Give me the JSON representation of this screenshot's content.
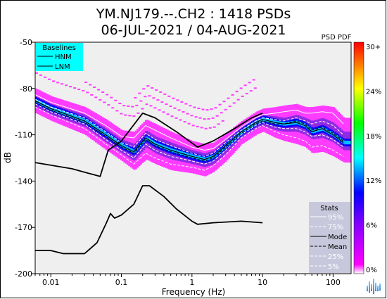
{
  "chart_data": {
    "type": "heatmap",
    "title": "YM.NJ179.--.CH2 : 1418 PSDs",
    "subtitle": "06-JUL-2021 / 04-AUG-2021",
    "xlabel": "Frequency (Hz)",
    "ylabel": "dB",
    "x_scale": "log",
    "xlim": [
      0.006,
      180
    ],
    "ylim": [
      -200,
      -50
    ],
    "x_ticks": [
      {
        "value": 0.01,
        "label": "0.01"
      },
      {
        "value": 0.1,
        "label": "0.1"
      },
      {
        "value": 1,
        "label": "1"
      },
      {
        "value": 10,
        "label": "10"
      },
      {
        "value": 100,
        "label": "100"
      }
    ],
    "y_ticks": [
      {
        "value": -50,
        "label": "-50"
      },
      {
        "value": -80,
        "label": "-80"
      },
      {
        "value": -110,
        "label": "-110"
      },
      {
        "value": -140,
        "label": "-140"
      },
      {
        "value": -170,
        "label": "-170"
      },
      {
        "value": -200,
        "label": "-200"
      }
    ],
    "colorbar": {
      "title": "PSD PDF",
      "labels": [
        "30+",
        "24%",
        "18%",
        "12%",
        "6%",
        "0%"
      ],
      "colors": [
        "#ff0000",
        "#ffff00",
        "#00ff00",
        "#00ffff",
        "#0000ff",
        "#ff00ff",
        "#ffffff"
      ]
    },
    "baselines_legend": {
      "title": "Baselines",
      "entries": [
        "HNM",
        "LNM"
      ],
      "background": "#00ffff"
    },
    "stats_legend": {
      "title": "Stats",
      "entries": [
        "95%",
        "75%",
        "Mode",
        "Mean",
        "25%",
        "5%"
      ],
      "background": "#c8c8dc"
    },
    "series": [
      {
        "name": "HNM",
        "x": [
          0.006,
          0.02,
          0.05,
          0.065,
          0.1,
          0.2,
          0.3,
          0.6,
          1.2,
          2,
          4,
          7,
          10
        ],
        "y": [
          -128,
          -132,
          -137,
          -120,
          -114,
          -96,
          -99,
          -108,
          -118,
          -114,
          -106,
          -99,
          -96
        ]
      },
      {
        "name": "LNM",
        "x": [
          0.006,
          0.01,
          0.015,
          0.03,
          0.045,
          0.06,
          0.07,
          0.08,
          0.1,
          0.15,
          0.2,
          0.25,
          0.4,
          0.6,
          1,
          1.2,
          2,
          5,
          10
        ],
        "y": [
          -185,
          -185,
          -187,
          -187,
          -180,
          -168,
          -161,
          -164,
          -162,
          -155,
          -143,
          -143,
          -150,
          -158,
          -166,
          -168,
          -167,
          -166,
          -167
        ]
      },
      {
        "name": "Mode",
        "x": [
          0.006,
          0.01,
          0.03,
          0.06,
          0.1,
          0.15,
          0.22,
          0.3,
          0.5,
          1,
          1.5,
          2,
          3,
          5,
          8,
          10,
          15,
          20,
          30,
          40,
          50,
          70,
          100,
          140
        ],
        "y": [
          -88,
          -93,
          -101,
          -110,
          -117,
          -121,
          -112,
          -116,
          -120,
          -124,
          -126,
          -124,
          -117,
          -108,
          -102,
          -100,
          -102,
          -103,
          -102,
          -104,
          -108,
          -106,
          -110,
          -115
        ]
      },
      {
        "name": "Mean",
        "x": [
          0.006,
          0.01,
          0.03,
          0.06,
          0.1,
          0.15,
          0.22,
          0.3,
          0.5,
          1,
          1.5,
          2,
          3,
          5,
          8,
          10,
          15,
          20,
          30,
          40,
          50,
          70,
          100,
          140
        ],
        "y": [
          -89,
          -94,
          -102,
          -111,
          -118,
          -122,
          -113,
          -117,
          -121,
          -125,
          -127,
          -125,
          -118,
          -109,
          -103,
          -101,
          -103,
          -103,
          -101,
          -103,
          -107,
          -105,
          -109,
          -114
        ]
      },
      {
        "name": "95%",
        "x": [
          0.006,
          0.01,
          0.03,
          0.06,
          0.1,
          0.15,
          0.22,
          0.3,
          0.5,
          1,
          1.5,
          2,
          3,
          5,
          8,
          10,
          15,
          20,
          30,
          40,
          50,
          70,
          100,
          140
        ],
        "y": [
          -84,
          -89,
          -96,
          -104,
          -111,
          -112,
          -104,
          -107,
          -112,
          -118,
          -120,
          -119,
          -113,
          -105,
          -99,
          -97,
          -96,
          -95,
          -94,
          -96,
          -96,
          -95,
          -96,
          -103
        ]
      },
      {
        "name": "75%",
        "x": [
          0.006,
          0.01,
          0.03,
          0.06,
          0.1,
          0.15,
          0.22,
          0.3,
          0.5,
          1,
          1.5,
          2,
          3,
          5,
          8,
          10,
          15,
          20,
          30,
          40,
          50,
          70,
          100,
          140
        ],
        "y": [
          -87,
          -92,
          -99,
          -108,
          -115,
          -118,
          -109,
          -113,
          -117,
          -122,
          -124,
          -122,
          -115,
          -107,
          -101,
          -99,
          -100,
          -101,
          -99,
          -101,
          -103,
          -101,
          -104,
          -110
        ]
      },
      {
        "name": "25%",
        "x": [
          0.006,
          0.01,
          0.03,
          0.06,
          0.1,
          0.15,
          0.22,
          0.3,
          0.5,
          1,
          1.5,
          2,
          3,
          5,
          8,
          10,
          15,
          20,
          30,
          40,
          50,
          70,
          100,
          140
        ],
        "y": [
          -90,
          -95,
          -103,
          -113,
          -120,
          -125,
          -116,
          -120,
          -124,
          -127,
          -129,
          -127,
          -120,
          -110,
          -104,
          -102,
          -105,
          -106,
          -106,
          -108,
          -111,
          -110,
          -113,
          -118
        ]
      },
      {
        "name": "5%",
        "x": [
          0.006,
          0.01,
          0.03,
          0.06,
          0.1,
          0.15,
          0.22,
          0.3,
          0.5,
          1,
          1.5,
          2,
          3,
          5,
          8,
          10,
          15,
          20,
          30,
          40,
          50,
          70,
          100,
          140
        ],
        "y": [
          -92,
          -97,
          -106,
          -116,
          -123,
          -129,
          -122,
          -125,
          -129,
          -131,
          -133,
          -130,
          -123,
          -112,
          -106,
          -104,
          -108,
          -110,
          -112,
          -114,
          -118,
          -117,
          -120,
          -124
        ]
      }
    ]
  }
}
